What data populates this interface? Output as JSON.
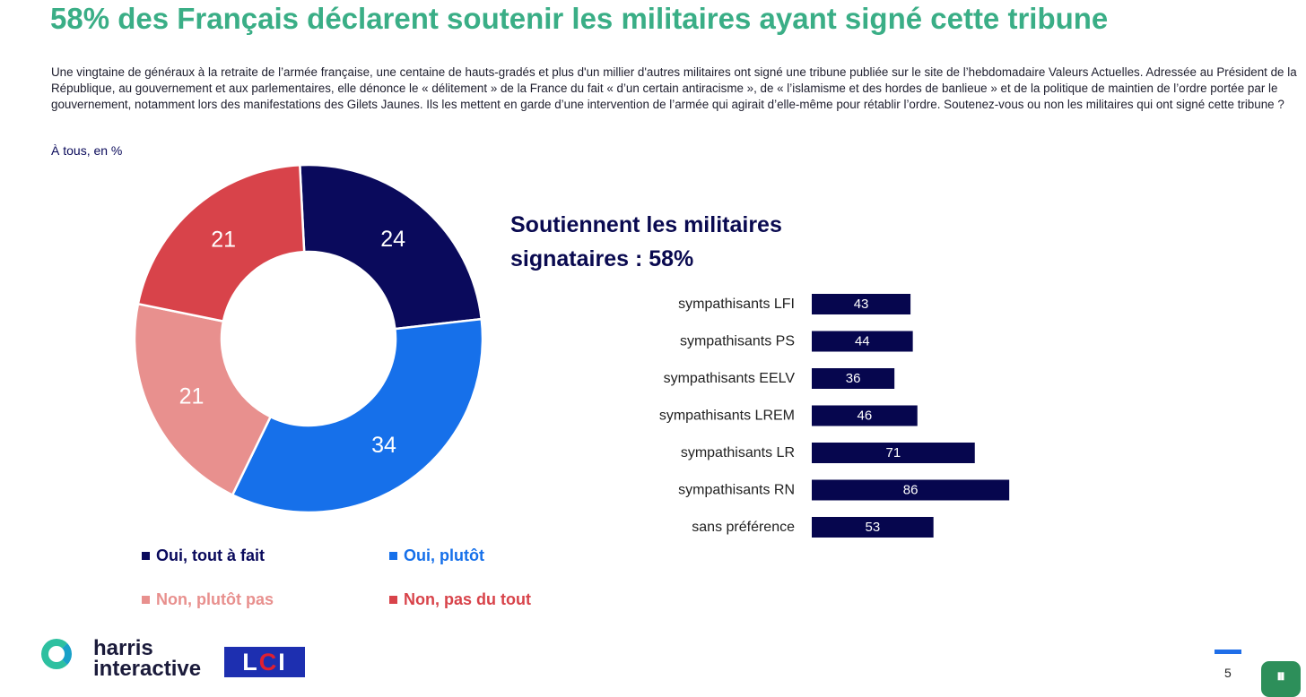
{
  "header": {
    "title": "58% des Français déclarent soutenir les militaires ayant signé cette tribune",
    "intro": "Une vingtaine de généraux à la retraite de l’armée française, une centaine de hauts-gradés et plus d'un millier d'autres militaires ont signé une tribune publiée  sur le site de l’hebdomadaire Valeurs Actuelles. Adressée au Président de la République, au gouvernement et aux parlementaires, elle dénonce le « délitement » de la France du fait « d’un certain antiracisme », de « l’islamisme et des hordes de banlieue » et de la politique de maintien de l’ordre portée par le gouvernement, notamment lors des manifestations des Gilets Jaunes. Ils les mettent en garde d’une intervention de l’armée qui agirait d’elle-même pour rétablir l’ordre. Soutenez-vous ou non les militaires qui ont signé cette tribune ?",
    "base": "À tous, en %"
  },
  "chart_data": [
    {
      "type": "pie",
      "variant": "donut",
      "categories": [
        "Oui, tout à fait",
        "Oui, plutôt",
        "Non, plutôt pas",
        "Non, pas du tout"
      ],
      "values": [
        24,
        34,
        21,
        21
      ],
      "colors": [
        "#0a0a5c",
        "#1670ea",
        "#e8908e",
        "#d8434a"
      ],
      "legend_placement": "bottom"
    },
    {
      "type": "bar",
      "orientation": "horizontal",
      "title": "Soutiennent les militaires signataires : 58%",
      "categories": [
        "sympathisants LFI",
        "sympathisants PS",
        "sympathisants EELV",
        "sympathisants LREM",
        "sympathisants LR",
        "sympathisants RN",
        "sans préférence"
      ],
      "values": [
        43,
        44,
        36,
        46,
        71,
        86,
        53
      ],
      "color": "#06064e",
      "xlim": [
        0,
        100
      ]
    }
  ],
  "logos": {
    "harris": "harris interactive",
    "lci": "LCI"
  },
  "footer": {
    "page_number": "5",
    "accent_color": "#1f6ee8"
  }
}
